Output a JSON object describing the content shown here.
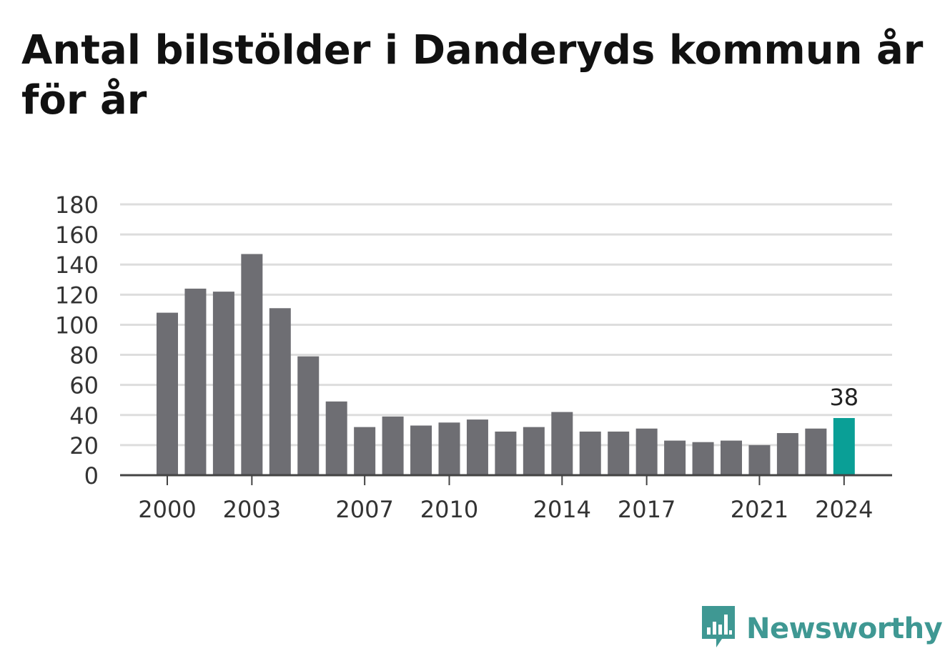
{
  "header": {
    "title": "Antal bilstölder i Danderyds kommun år för år"
  },
  "brand": {
    "name": "Newsworthy",
    "icon": "newsworthy-logo-icon",
    "color": "#3f9893"
  },
  "colors": {
    "bar": "#6e6e73",
    "highlight": "#0a9f96",
    "grid": "#dddddd",
    "axis": "#444444"
  },
  "chart_data": {
    "type": "bar",
    "title": "Antal bilstölder i Danderyds kommun år för år",
    "xlabel": "",
    "ylabel": "",
    "ylim": [
      0,
      180
    ],
    "yticks": [
      0,
      20,
      40,
      60,
      80,
      100,
      120,
      140,
      160,
      180
    ],
    "xtick_labels": [
      "2000",
      "2003",
      "2007",
      "2010",
      "2014",
      "2017",
      "2021",
      "2024"
    ],
    "grid": true,
    "categories": [
      "2000",
      "2001",
      "2002",
      "2003",
      "2004",
      "2005",
      "2006",
      "2007",
      "2008",
      "2009",
      "2010",
      "2011",
      "2012",
      "2013",
      "2014",
      "2015",
      "2016",
      "2017",
      "2018",
      "2019",
      "2020",
      "2021",
      "2022",
      "2023",
      "2024"
    ],
    "values": [
      108,
      124,
      122,
      147,
      111,
      79,
      49,
      32,
      39,
      33,
      35,
      37,
      29,
      32,
      42,
      29,
      29,
      31,
      23,
      22,
      23,
      20,
      28,
      31,
      38
    ],
    "highlight": {
      "category": "2024",
      "label": "38"
    }
  }
}
